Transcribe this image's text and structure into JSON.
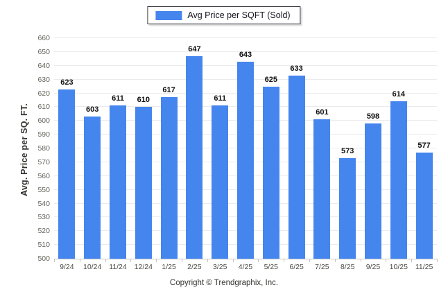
{
  "legend": {
    "label": "Avg Price per SQFT (Sold)"
  },
  "footer": {
    "copyright": "Copyright © Trendgraphix, Inc."
  },
  "chart_data": {
    "type": "bar",
    "title": "",
    "categories": [
      "9/24",
      "10/24",
      "11/24",
      "12/24",
      "1/25",
      "2/25",
      "3/25",
      "4/25",
      "5/25",
      "6/25",
      "7/25",
      "8/25",
      "9/25",
      "10/25",
      "11/25"
    ],
    "values": [
      623,
      603,
      611,
      610,
      617,
      647,
      611,
      643,
      625,
      633,
      601,
      573,
      598,
      614,
      577
    ],
    "legend_label": "Avg Price per SQFT (Sold)",
    "xlabel": "",
    "ylabel": "Avg. Price per SQ. FT.",
    "ylim": [
      500,
      660
    ],
    "ytick_step": 10,
    "grid": true,
    "legend_position": "top-center",
    "value_labels": true,
    "bar_color": "#4585EE"
  }
}
